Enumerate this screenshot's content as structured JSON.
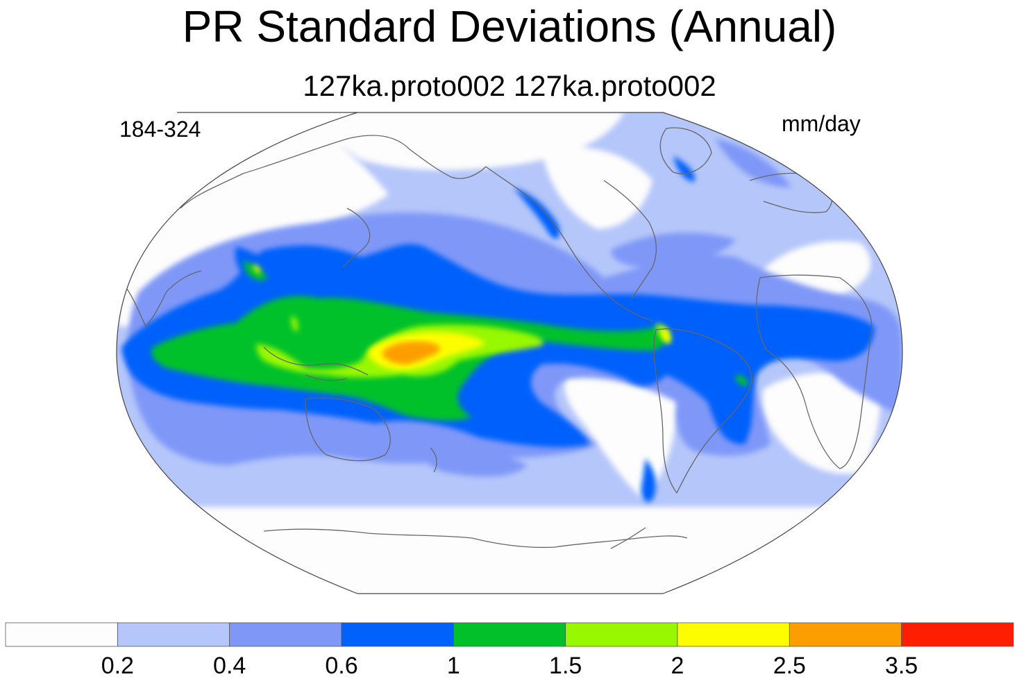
{
  "figure": {
    "title": "PR Standard Deviations (Annual)",
    "subtitle": "127ka.proto002  127ka.proto002",
    "left_annotation": "184-324",
    "right_annotation": "mm/day"
  },
  "colorbar": {
    "colors": [
      "#fdfdfd",
      "#b5c6fa",
      "#7f98f8",
      "#0061fb",
      "#00c12a",
      "#98f800",
      "#fefd00",
      "#fd9e00",
      "#fe1f02"
    ],
    "labels": [
      "0.2",
      "0.4",
      "0.6",
      "1",
      "1.5",
      "2",
      "2.5",
      "3.5"
    ]
  },
  "map": {
    "projection": "Robinson",
    "center_longitude": 180,
    "variable": "PR"
  }
}
